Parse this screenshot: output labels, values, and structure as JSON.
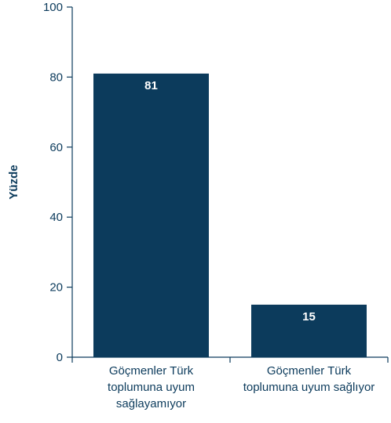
{
  "chart_data": {
    "type": "bar",
    "categories": [
      [
        "Göçmenler Türk",
        "toplumuna uyum",
        "sağlayamıyor"
      ],
      [
        "Göçmenler Türk",
        "toplumuna uyum sağlıyor"
      ]
    ],
    "values": [
      81,
      15
    ],
    "data_labels": [
      "81",
      "15"
    ],
    "ylabel": "Yüzde",
    "xlabel": "",
    "title": "",
    "ylim": [
      0,
      100
    ],
    "yticks": [
      0,
      20,
      40,
      60,
      80,
      100
    ],
    "ytick_labels": [
      "0",
      "20",
      "40",
      "60",
      "80",
      "100"
    ],
    "grid": false,
    "colors": {
      "bar": "#0c3b5c",
      "axis": "#0c3b5c",
      "text": "#0c3b5c",
      "data_label": "#ffffff"
    }
  }
}
